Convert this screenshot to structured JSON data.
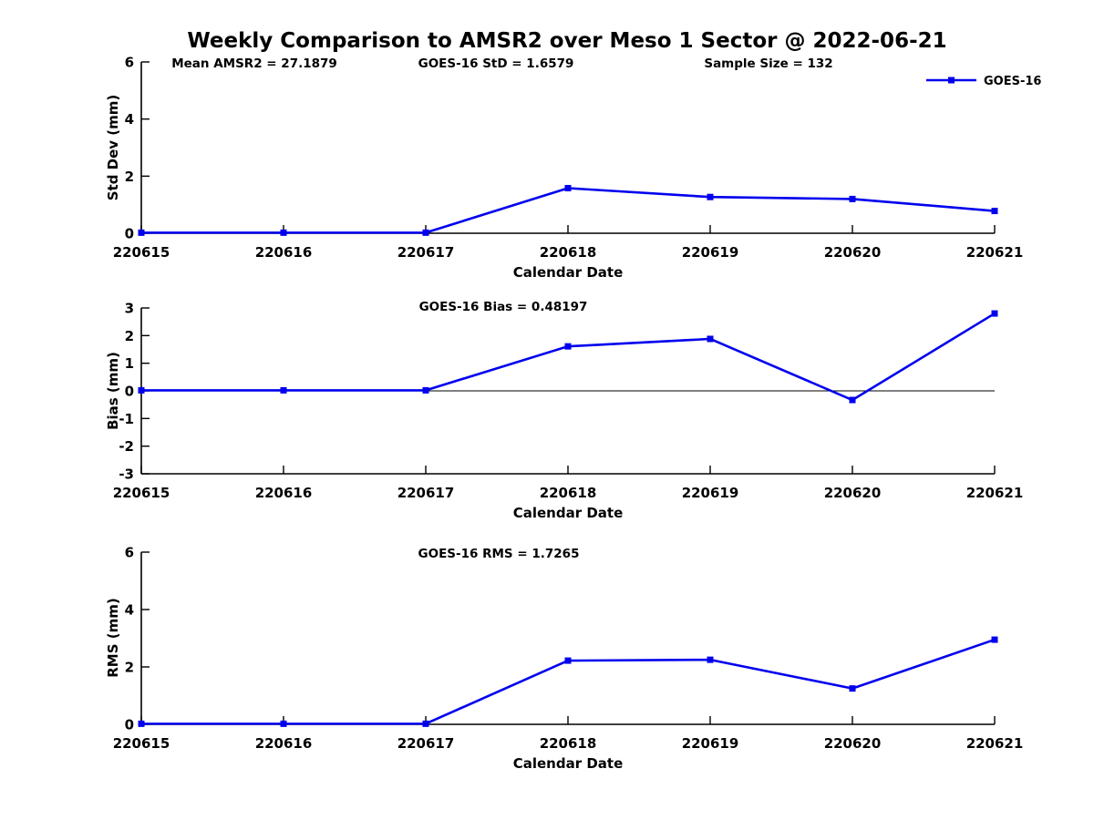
{
  "title": "Weekly Comparison to AMSR2 over Meso 1 Sector @ 2022-06-21",
  "legend": {
    "label": "GOES-16",
    "color": "#0000EE"
  },
  "chart_data": [
    {
      "type": "line",
      "panel": "std-dev",
      "ylabel": "Std Dev (mm)",
      "xlabel": "Calendar Date",
      "categories": [
        "220615",
        "220616",
        "220617",
        "220618",
        "220619",
        "220620",
        "220621"
      ],
      "series": [
        {
          "name": "GOES-16",
          "color": "#0000EE",
          "marker": "square",
          "values": [
            0.02,
            0.02,
            0.02,
            1.58,
            1.27,
            1.2,
            0.78
          ]
        }
      ],
      "ylim": [
        0,
        6
      ],
      "yticks": [
        0,
        2,
        4,
        6
      ],
      "grid": false,
      "legend_position": "top-right",
      "annotations": [
        "Mean AMSR2 = 27.1879",
        "GOES-16 StD = 1.6579",
        "Sample Size = 132"
      ]
    },
    {
      "type": "line",
      "panel": "bias",
      "ylabel": "Bias (mm)",
      "xlabel": "Calendar Date",
      "categories": [
        "220615",
        "220616",
        "220617",
        "220618",
        "220619",
        "220620",
        "220621"
      ],
      "series": [
        {
          "name": "GOES-16",
          "color": "#0000EE",
          "marker": "square",
          "values": [
            0.02,
            0.02,
            0.02,
            1.61,
            1.88,
            -0.33,
            2.8
          ]
        }
      ],
      "ylim": [
        -3,
        3
      ],
      "yticks": [
        3,
        2,
        1,
        0,
        -1,
        -2,
        -3
      ],
      "zero_line": true,
      "grid": false,
      "annotations": [
        "GOES-16 Bias  = 0.48197"
      ]
    },
    {
      "type": "line",
      "panel": "rms",
      "ylabel": "RMS (mm)",
      "xlabel": "Calendar Date",
      "categories": [
        "220615",
        "220616",
        "220617",
        "220618",
        "220619",
        "220620",
        "220621"
      ],
      "series": [
        {
          "name": "GOES-16",
          "color": "#0000EE",
          "marker": "square",
          "values": [
            0.02,
            0.02,
            0.02,
            2.22,
            2.25,
            1.25,
            2.95
          ]
        }
      ],
      "ylim": [
        0,
        6
      ],
      "yticks": [
        0,
        2,
        4,
        6
      ],
      "grid": false,
      "annotations": [
        "GOES-16 RMS = 1.7265"
      ]
    }
  ]
}
